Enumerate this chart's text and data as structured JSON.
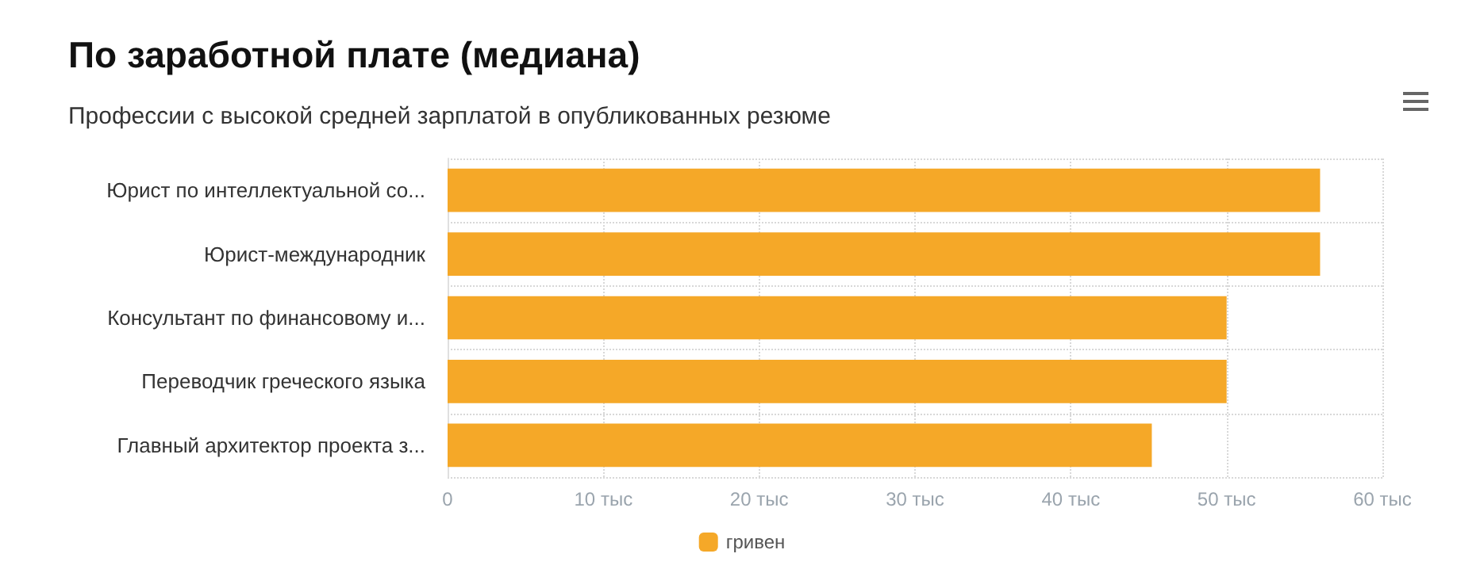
{
  "chart_data": {
    "type": "bar",
    "orientation": "horizontal",
    "title": "По заработной плате (медиана)",
    "subtitle": "Профессии с высокой средней зарплатой в опубликованных резюме",
    "categories": [
      "Юрист по интеллектуальной со...",
      "Юрист-международник",
      "Консультант по финансовому и...",
      "Переводчик греческого языка",
      "Главный архитектор проекта з..."
    ],
    "series": [
      {
        "name": "гривен",
        "color": "#f5a828",
        "values": [
          56,
          56,
          50,
          50,
          45.2
        ]
      }
    ],
    "xlim": [
      0,
      60
    ],
    "xticks": [
      0,
      {
        "value": 10,
        "label": "10 тыс"
      },
      {
        "value": 20,
        "label": "20 тыс"
      },
      {
        "value": 30,
        "label": "30 тыс"
      },
      {
        "value": 40,
        "label": "40 тыс"
      },
      {
        "value": 50,
        "label": "50 тыс"
      },
      {
        "value": 60,
        "label": "60 тыс"
      }
    ],
    "grid": true,
    "legend": "bottom"
  }
}
